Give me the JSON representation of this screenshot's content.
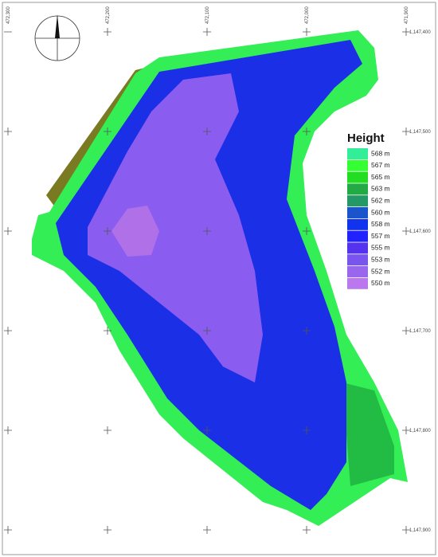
{
  "legend": {
    "title": "Height",
    "entries": [
      {
        "label": "568 m",
        "color": "#33ee99"
      },
      {
        "label": "567 m",
        "color": "#33ff33"
      },
      {
        "label": "565 m",
        "color": "#22dd22"
      },
      {
        "label": "563 m",
        "color": "#22aa44"
      },
      {
        "label": "562 m",
        "color": "#229966"
      },
      {
        "label": "560 m",
        "color": "#1a55cc"
      },
      {
        "label": "558 m",
        "color": "#1133ee"
      },
      {
        "label": "557 m",
        "color": "#2222ff"
      },
      {
        "label": "555 m",
        "color": "#5533ee"
      },
      {
        "label": "553 m",
        "color": "#7755ee"
      },
      {
        "label": "552 m",
        "color": "#9966ee"
      },
      {
        "label": "550 m",
        "color": "#bb77ee"
      }
    ]
  },
  "easting_labels": [
    "472,300",
    "472,200",
    "472,100",
    "472,000",
    "471,900"
  ],
  "northing_labels": [
    "1,147,400",
    "1,147,500",
    "1,147,600",
    "1,147,700",
    "1,147,800",
    "1,147,900"
  ]
}
